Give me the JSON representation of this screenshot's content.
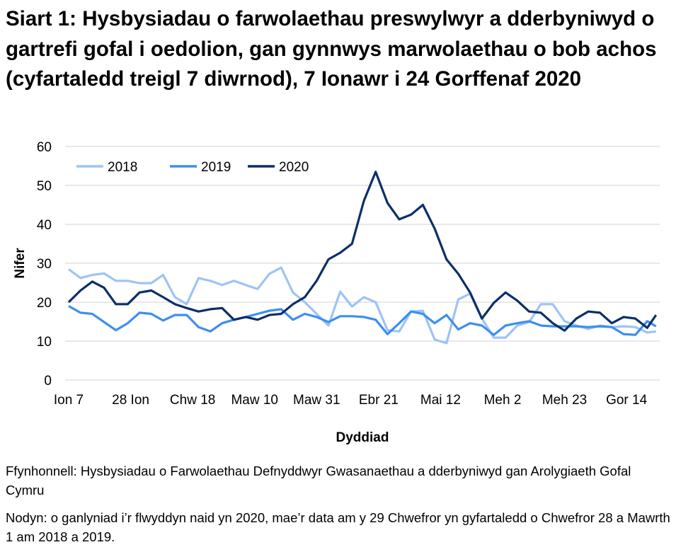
{
  "title": "Siart 1: Hysbysiadau o farwolaethau preswylwyr a dderbyniwyd o gartrefi gofal i oedolion, gan gynnwys marwolaethau o bob achos (cyfartaledd treigl 7 diwrnod), 7 Ionawr i 24 Gorffenaf 2020",
  "footer": {
    "source": "Ffynhonnell: Hysbysiadau o Farwolaethau Defnyddwyr Gwasanaethau a dderbyniwyd gan Arolygiaeth Gofal Cymru",
    "note": "Nodyn: o ganlyniad i’r flwyddyn naid yn 2020, mae’r data am y 29 Chwefror yn gyfartaledd o Chwefror 28 a Mawrth 1 am 2018 a 2019."
  },
  "chart_data": {
    "type": "line",
    "title": "Siart 1: Hysbysiadau o farwolaethau preswylwyr a dderbyniwyd o gartrefi gofal i oedolion, gan gynnwys marwolaethau o bob achos (cyfartaledd treigl 7 diwrnod), 7 Ionawr i 24 Gorffenaf 2020",
    "xlabel": "Dyddiad",
    "ylabel": "Nifer",
    "ylim": [
      0,
      60
    ],
    "yticks": [
      0,
      10,
      20,
      30,
      40,
      50,
      60
    ],
    "grid": true,
    "legend": "top-left",
    "xticks": [
      {
        "date": "2020-01-07",
        "label": "Ion 7"
      },
      {
        "date": "2020-01-28",
        "label": "28 Ion"
      },
      {
        "date": "2020-02-18",
        "label": "Chw 18"
      },
      {
        "date": "2020-03-10",
        "label": "Maw 10"
      },
      {
        "date": "2020-03-31",
        "label": "Maw 31"
      },
      {
        "date": "2020-04-21",
        "label": "Ebr 21"
      },
      {
        "date": "2020-05-12",
        "label": "Mai 12"
      },
      {
        "date": "2020-06-02",
        "label": "Meh 2"
      },
      {
        "date": "2020-06-23",
        "label": "Meh 23"
      },
      {
        "date": "2020-07-14",
        "label": "Gor 14"
      }
    ],
    "x": [
      "2020-01-07",
      "2020-01-11",
      "2020-01-15",
      "2020-01-19",
      "2020-01-23",
      "2020-01-27",
      "2020-01-31",
      "2020-02-04",
      "2020-02-08",
      "2020-02-12",
      "2020-02-16",
      "2020-02-20",
      "2020-02-24",
      "2020-02-28",
      "2020-03-03",
      "2020-03-07",
      "2020-03-11",
      "2020-03-15",
      "2020-03-19",
      "2020-03-23",
      "2020-03-27",
      "2020-03-31",
      "2020-04-04",
      "2020-04-08",
      "2020-04-12",
      "2020-04-16",
      "2020-04-20",
      "2020-04-24",
      "2020-04-28",
      "2020-05-02",
      "2020-05-06",
      "2020-05-10",
      "2020-05-14",
      "2020-05-18",
      "2020-05-22",
      "2020-05-26",
      "2020-05-30",
      "2020-06-03",
      "2020-06-07",
      "2020-06-11",
      "2020-06-15",
      "2020-06-19",
      "2020-06-23",
      "2020-06-27",
      "2020-07-01",
      "2020-07-05",
      "2020-07-09",
      "2020-07-13",
      "2020-07-17",
      "2020-07-21",
      "2020-07-24"
    ],
    "series": [
      {
        "name": "2018",
        "color": "#9dc3f7",
        "values": [
          28.5,
          26.2,
          27,
          27.4,
          25.5,
          25.5,
          24.9,
          24.9,
          27,
          21.3,
          19.5,
          26.2,
          25.5,
          24.4,
          25.5,
          24.4,
          23.4,
          27.3,
          28.9,
          22.5,
          20,
          17,
          14,
          22.7,
          18.9,
          21.3,
          20,
          12.8,
          12.5,
          17.6,
          17.8,
          10.4,
          9.5,
          20.7,
          22.2,
          15.8,
          10.9,
          10.9,
          14,
          14.9,
          19.5,
          19.5,
          15.1,
          14,
          13.1,
          14,
          13.6,
          13.8,
          13.6,
          12.2,
          12.5
        ]
      },
      {
        "name": "2019",
        "color": "#3d8ef0",
        "values": [
          19,
          17.3,
          17,
          14.9,
          12.8,
          14.6,
          17.3,
          17,
          15.3,
          16.7,
          16.7,
          13.6,
          12.5,
          14.6,
          15.5,
          16.2,
          17,
          17.8,
          18.2,
          15.5,
          17,
          16.2,
          14.9,
          16.4,
          16.4,
          16.2,
          15.5,
          11.8,
          14.6,
          17.6,
          17,
          14.6,
          16.7,
          13,
          14.6,
          14,
          11.6,
          14,
          14.6,
          15.1,
          14,
          13.8,
          13.8,
          13.8,
          13.6,
          13.8,
          13.6,
          11.8,
          11.6,
          15.1,
          13.8
        ]
      },
      {
        "name": "2020",
        "color": "#0b2f67",
        "values": [
          20,
          23,
          25.3,
          23.7,
          19.5,
          19.5,
          22.5,
          23,
          21.3,
          19.5,
          18.5,
          17.6,
          18.2,
          18.5,
          15.5,
          16.2,
          15.5,
          16.7,
          17,
          19.5,
          21.3,
          25.5,
          31,
          32.7,
          35,
          46,
          53.5,
          45.5,
          41.3,
          42.5,
          45,
          38.9,
          31,
          27.3,
          22.5,
          15.8,
          19.8,
          22.5,
          20.4,
          17.6,
          17.3,
          14.6,
          12.7,
          15.8,
          17.6,
          17.3,
          14.6,
          16.2,
          15.8,
          13.4,
          16.7
        ]
      }
    ]
  }
}
